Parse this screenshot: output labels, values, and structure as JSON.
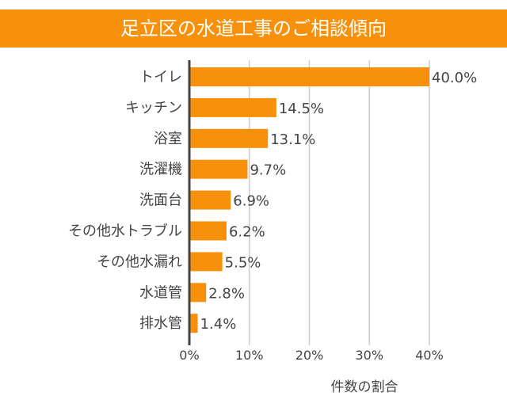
{
  "chart_data": {
    "type": "bar",
    "orientation": "horizontal",
    "title": "足立区の水道工事のご相談傾向",
    "categories": [
      "トイレ",
      "キッチン",
      "浴室",
      "洗濯機",
      "洗面台",
      "その他水トラブル",
      "その他水漏れ",
      "水道管",
      "排水管"
    ],
    "values": [
      40.0,
      14.5,
      13.1,
      9.7,
      6.9,
      6.2,
      5.5,
      2.8,
      1.4
    ],
    "data_labels": [
      "40.0%",
      "14.5%",
      "13.1%",
      "9.7%",
      "6.9%",
      "6.2%",
      "5.5%",
      "2.8%",
      "1.4%"
    ],
    "xlabel": "件数の割合",
    "ylabel": "",
    "xlim": [
      0,
      40
    ],
    "xticks": [
      "0%",
      "10%",
      "20%",
      "30%",
      "40%"
    ],
    "grid": true,
    "bar_color": "#f7900a"
  }
}
